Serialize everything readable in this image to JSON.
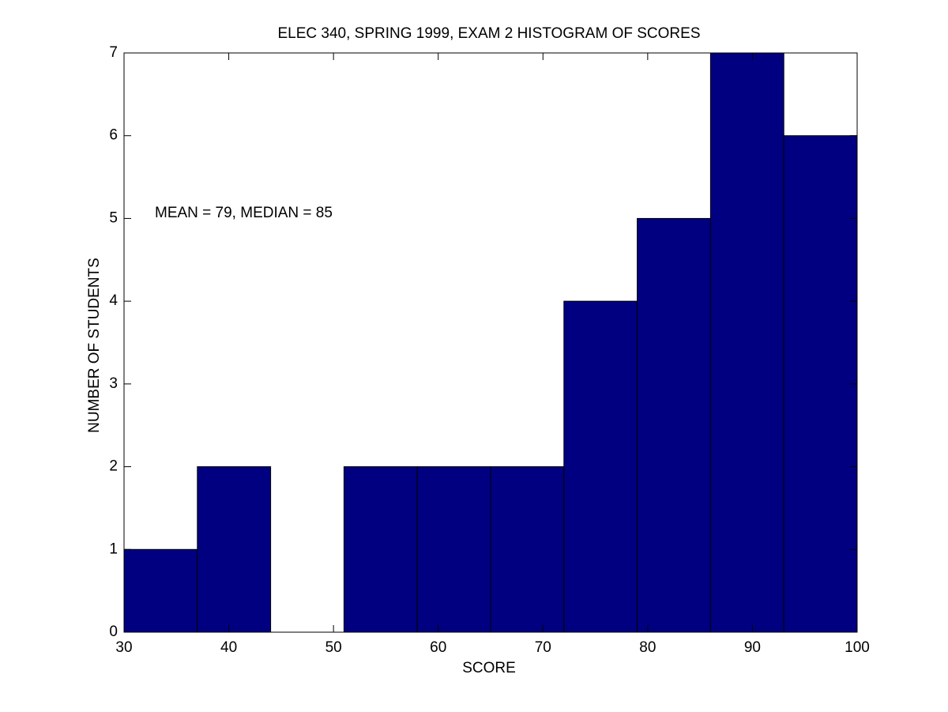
{
  "chart_data": {
    "type": "histogram",
    "title": "ELEC 340, SPRING 1999, EXAM 2 HISTOGRAM OF SCORES",
    "xlabel": "SCORE",
    "ylabel": "NUMBER OF STUDENTS",
    "annotation": "MEAN = 79, MEDIAN = 85",
    "bins": [
      30,
      37,
      44,
      51,
      58,
      65,
      72,
      79,
      86,
      93,
      100
    ],
    "values": [
      1,
      2,
      0,
      2,
      2,
      2,
      4,
      5,
      7,
      6
    ],
    "color": "#000080",
    "xlim": [
      30,
      100
    ],
    "ylim": [
      0,
      7
    ],
    "xticks": [
      30,
      40,
      50,
      60,
      70,
      80,
      90,
      100
    ],
    "yticks": [
      0,
      1,
      2,
      3,
      4,
      5,
      6,
      7
    ]
  }
}
